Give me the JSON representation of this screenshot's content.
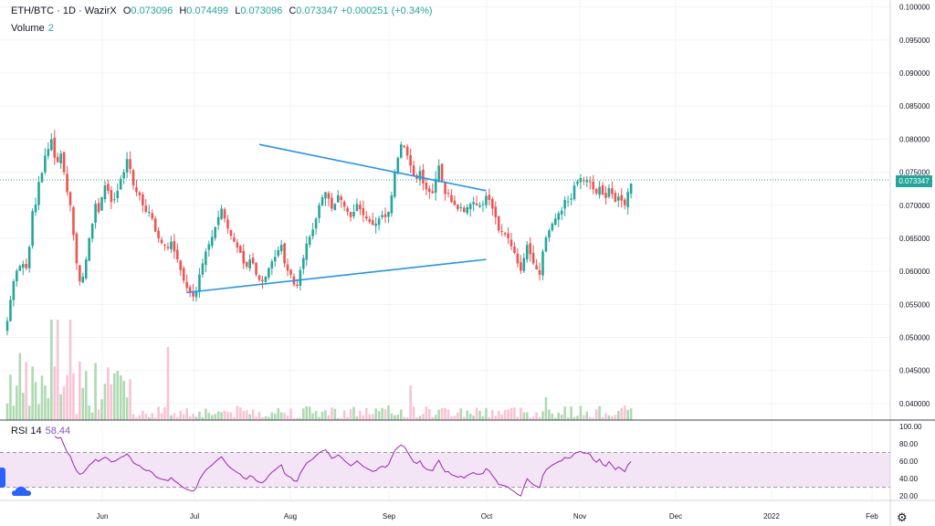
{
  "legend": {
    "symbol": "ETH/BTC",
    "interval": "1D",
    "exchange": "WazirX",
    "open_label": "O",
    "open": "0.073096",
    "high_label": "H",
    "high": "0.074499",
    "low_label": "L",
    "low": "0.073096",
    "close_label": "C",
    "close": "0.073347",
    "change": "+0.000251 (+0.34%)"
  },
  "volume": {
    "label": "Volume",
    "value": "2"
  },
  "rsi": {
    "label": "RSI 14",
    "value": "58.44",
    "axis_ticks": [
      "100.00",
      "80.00",
      "60.00",
      "40.00",
      "20.00"
    ]
  },
  "price_tag": "0.073347",
  "colors": {
    "up": "#26a69a",
    "down": "#ef5350",
    "trend": "#2196f3",
    "rsi": "#9c27b0",
    "rsi_band": "#f3e5f5"
  },
  "icons": {
    "settings": "gear-icon",
    "collapse": "cloud-icon"
  },
  "chart_data": {
    "type": "candlestick",
    "price_axis": [
      "0.100000",
      "0.095000",
      "0.090000",
      "0.085000",
      "0.080000",
      "0.075000",
      "0.070000",
      "0.065000",
      "0.060000",
      "0.055000",
      "0.050000",
      "0.045000",
      "0.040000"
    ],
    "time_axis": [
      "Jun",
      "Jul",
      "Aug",
      "Sep",
      "Oct",
      "Nov",
      "Dec",
      "2022",
      "Feb"
    ],
    "ylim": [
      0.0375,
      0.1005
    ],
    "closes": [
      0.0525,
      0.0557,
      0.0585,
      0.0601,
      0.0608,
      0.0611,
      0.0605,
      0.0637,
      0.0691,
      0.0701,
      0.0735,
      0.0749,
      0.0775,
      0.0785,
      0.08,
      0.0772,
      0.0765,
      0.0778,
      0.075,
      0.072,
      0.07,
      0.0655,
      0.0612,
      0.0585,
      0.0592,
      0.0618,
      0.065,
      0.0672,
      0.0702,
      0.069,
      0.0712,
      0.073,
      0.0722,
      0.0705,
      0.0709,
      0.0722,
      0.074,
      0.075,
      0.077,
      0.0755,
      0.073,
      0.072,
      0.0715,
      0.07,
      0.069,
      0.069,
      0.068,
      0.066,
      0.065,
      0.0643,
      0.064,
      0.0635,
      0.0645,
      0.063,
      0.0618,
      0.0602,
      0.0586,
      0.0575,
      0.0568,
      0.0562,
      0.057,
      0.0595,
      0.0612,
      0.063,
      0.0641,
      0.0652,
      0.0667,
      0.0682,
      0.0695,
      0.068,
      0.0665,
      0.0654,
      0.0645,
      0.0636,
      0.0628,
      0.0612,
      0.0607,
      0.0618,
      0.0612,
      0.0595,
      0.0587,
      0.0585,
      0.0592,
      0.0605,
      0.0615,
      0.0622,
      0.0632,
      0.064,
      0.0612,
      0.0601,
      0.0595,
      0.058,
      0.0578,
      0.0602,
      0.062,
      0.0642,
      0.0652,
      0.0663,
      0.068,
      0.07,
      0.0712,
      0.072,
      0.071,
      0.0695,
      0.0702,
      0.0715,
      0.0708,
      0.0698,
      0.069,
      0.0682,
      0.069,
      0.0702,
      0.0694,
      0.0685,
      0.068,
      0.0675,
      0.067,
      0.0672,
      0.068,
      0.0685,
      0.0682,
      0.069,
      0.0715,
      0.075,
      0.0772,
      0.0792,
      0.0788,
      0.0775,
      0.076,
      0.0745,
      0.074,
      0.0752,
      0.0733,
      0.0724,
      0.072,
      0.0718,
      0.074,
      0.076,
      0.0737,
      0.0717,
      0.0718,
      0.0705,
      0.07,
      0.0694,
      0.0697,
      0.069,
      0.0697,
      0.0702,
      0.0705,
      0.07,
      0.07,
      0.0702,
      0.0714,
      0.0708,
      0.0695,
      0.0682,
      0.0662,
      0.066,
      0.0656,
      0.065,
      0.0638,
      0.0628,
      0.0612,
      0.0601,
      0.062,
      0.064,
      0.0626,
      0.0612,
      0.0603,
      0.0595,
      0.063,
      0.0651,
      0.0662,
      0.0672,
      0.068,
      0.0688,
      0.0692,
      0.0708,
      0.0706,
      0.071,
      0.073,
      0.0736,
      0.0741,
      0.0737,
      0.0738,
      0.0735,
      0.0724,
      0.0718,
      0.0728,
      0.0716,
      0.0711,
      0.0726,
      0.0717,
      0.0705,
      0.0713,
      0.0707,
      0.07,
      0.072,
      0.0733
    ],
    "trendlines": [
      {
        "from": [
          80,
          0.0792
        ],
        "to": [
          152,
          0.0722
        ]
      },
      {
        "from": [
          57,
          0.0568
        ],
        "to": [
          152,
          0.0618
        ]
      }
    ]
  }
}
